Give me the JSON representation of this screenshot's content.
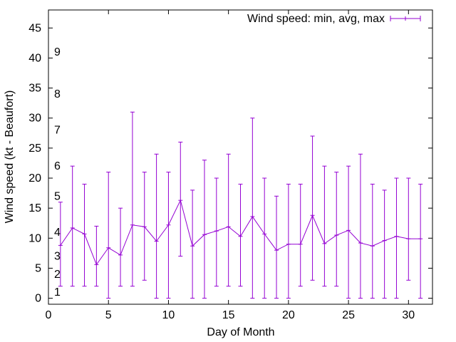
{
  "chart_data": {
    "type": "line",
    "xlabel": "Day of Month",
    "ylabel": "Wind speed (kt - Beaufort)",
    "xlim": [
      0,
      32
    ],
    "ylim": [
      -1,
      48
    ],
    "xticks": [
      0,
      5,
      10,
      15,
      20,
      25,
      30
    ],
    "yticks": [
      0,
      5,
      10,
      15,
      20,
      25,
      30,
      35,
      40,
      45
    ],
    "grid": false,
    "legend_position": "top-right",
    "color": "#9400D3",
    "series": [
      {
        "name": "Wind speed: min, avg, max",
        "x": [
          1,
          2,
          3,
          4,
          5,
          6,
          7,
          8,
          9,
          10,
          11,
          12,
          13,
          14,
          15,
          16,
          17,
          18,
          19,
          20,
          21,
          22,
          23,
          24,
          25,
          26,
          27,
          28,
          29,
          30,
          31
        ],
        "avg": [
          8.8,
          11.7,
          10.7,
          5.6,
          8.4,
          7.2,
          12.2,
          11.9,
          9.5,
          12.2,
          16.3,
          8.7,
          10.6,
          11.2,
          11.9,
          10.3,
          13.6,
          10.7,
          8.0,
          9.0,
          9.0,
          13.8,
          9.1,
          10.5,
          11.3,
          9.2,
          8.7,
          9.6,
          10.3,
          9.9,
          9.9
        ],
        "min": [
          2,
          2,
          2,
          2,
          0,
          2,
          2,
          3,
          0,
          0,
          7,
          0,
          0,
          2,
          2,
          2,
          0,
          0,
          0,
          0,
          2,
          3,
          2,
          2,
          0,
          0,
          0,
          0,
          0,
          3,
          0
        ],
        "max": [
          16,
          22,
          19,
          12,
          21,
          15,
          31,
          21,
          24,
          21,
          26,
          18,
          23,
          20,
          24,
          19,
          30,
          20,
          17,
          19,
          19,
          27,
          22,
          21,
          22,
          24,
          19,
          18,
          20,
          20,
          19
        ]
      }
    ],
    "annotations": [
      {
        "text": "1",
        "y": 1
      },
      {
        "text": "2",
        "y": 4
      },
      {
        "text": "3",
        "y": 7
      },
      {
        "text": "4",
        "y": 11
      },
      {
        "text": "5",
        "y": 17
      },
      {
        "text": "6",
        "y": 22
      },
      {
        "text": "7",
        "y": 28
      },
      {
        "text": "8",
        "y": 34
      },
      {
        "text": "9",
        "y": 41
      }
    ]
  }
}
